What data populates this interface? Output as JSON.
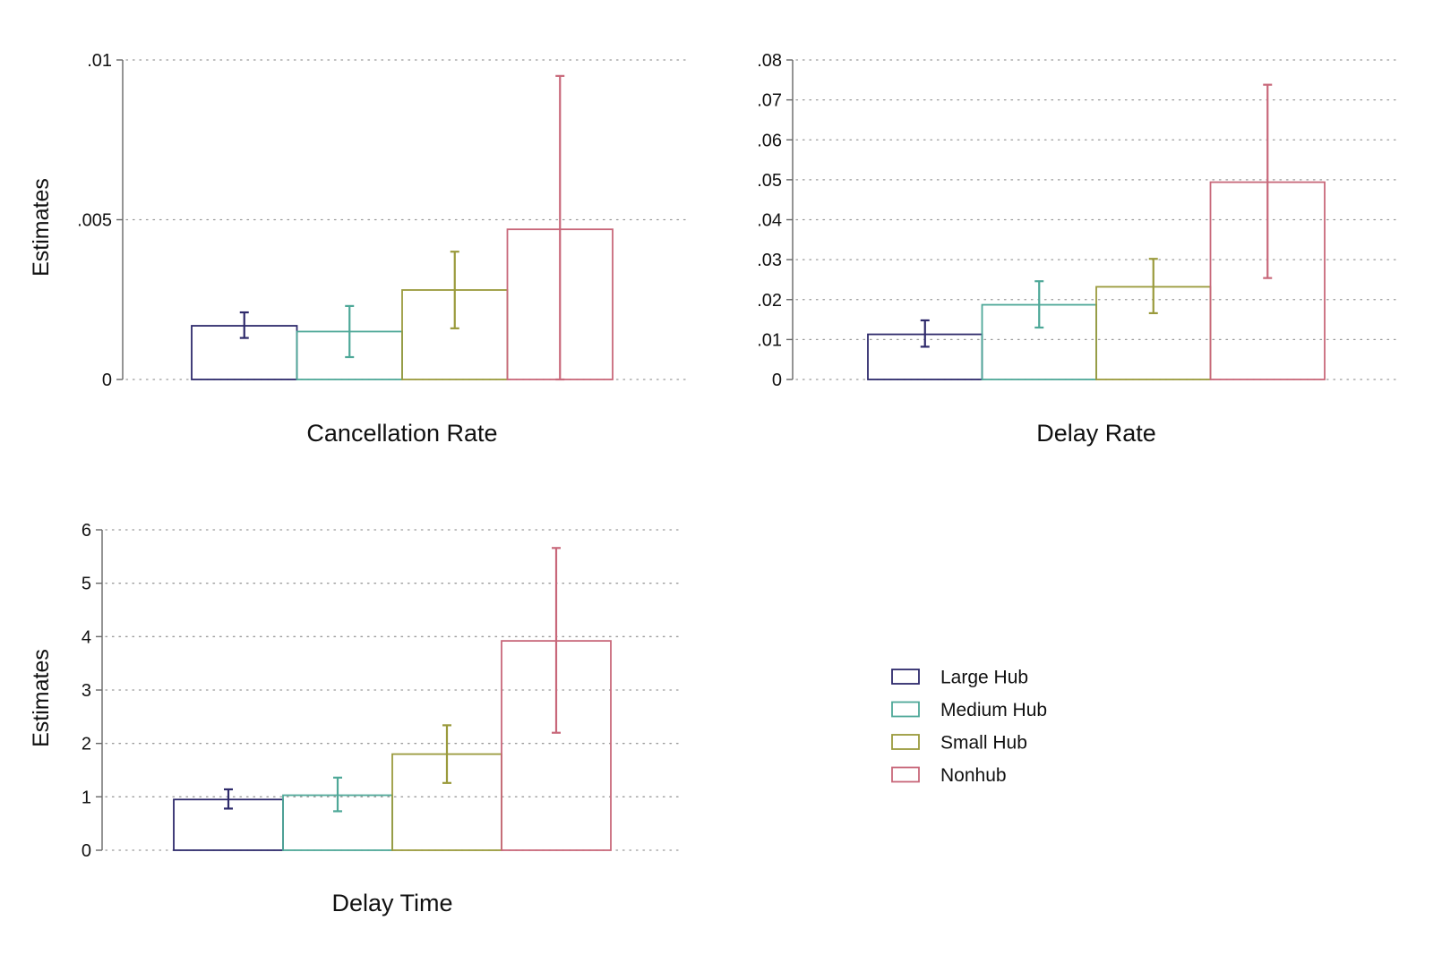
{
  "legend": {
    "position": "bottom-right",
    "entries": [
      {
        "name": "Large Hub",
        "color": "#2e2a6b"
      },
      {
        "name": "Medium Hub",
        "color": "#4ea898"
      },
      {
        "name": "Small Hub",
        "color": "#9a9a3c"
      },
      {
        "name": "Nonhub",
        "color": "#c8687a"
      }
    ]
  },
  "chart_data": [
    {
      "type": "bar",
      "title": "",
      "xlabel": "Cancellation Rate",
      "ylabel": "Estimates",
      "ylim": [
        0,
        0.01
      ],
      "yticks": [
        0,
        0.005,
        0.01
      ],
      "ytick_labels": [
        "0",
        ".005",
        ".01"
      ],
      "grid": true,
      "categories": [
        "Large Hub",
        "Medium Hub",
        "Small Hub",
        "Nonhub"
      ],
      "values": [
        0.00168,
        0.0015,
        0.0028,
        0.0047
      ],
      "ci_low": [
        0.0013,
        0.0007,
        0.0016,
        0.0
      ],
      "ci_high": [
        0.0021,
        0.0023,
        0.004,
        0.0095
      ]
    },
    {
      "type": "bar",
      "title": "",
      "xlabel": "Delay Rate",
      "ylabel": "",
      "ylim": [
        0,
        0.08
      ],
      "yticks": [
        0,
        0.01,
        0.02,
        0.03,
        0.04,
        0.05,
        0.06,
        0.07,
        0.08
      ],
      "ytick_labels": [
        "0",
        ".01",
        ".02",
        ".03",
        ".04",
        ".05",
        ".06",
        ".07",
        ".08"
      ],
      "grid": true,
      "categories": [
        "Large Hub",
        "Medium Hub",
        "Small Hub",
        "Nonhub"
      ],
      "values": [
        0.0113,
        0.0187,
        0.0232,
        0.0494
      ],
      "ci_low": [
        0.0082,
        0.013,
        0.0166,
        0.0254
      ],
      "ci_high": [
        0.0148,
        0.0246,
        0.0302,
        0.0738
      ]
    },
    {
      "type": "bar",
      "title": "",
      "xlabel": "Delay Time",
      "ylabel": "Estimates",
      "ylim": [
        0,
        6
      ],
      "yticks": [
        0,
        1,
        2,
        3,
        4,
        5,
        6
      ],
      "ytick_labels": [
        "0",
        "1",
        "2",
        "3",
        "4",
        "5",
        "6"
      ],
      "grid": true,
      "categories": [
        "Large Hub",
        "Medium Hub",
        "Small Hub",
        "Nonhub"
      ],
      "values": [
        0.95,
        1.03,
        1.8,
        3.92
      ],
      "ci_low": [
        0.78,
        0.73,
        1.26,
        2.2
      ],
      "ci_high": [
        1.14,
        1.36,
        2.34,
        5.66
      ]
    }
  ]
}
